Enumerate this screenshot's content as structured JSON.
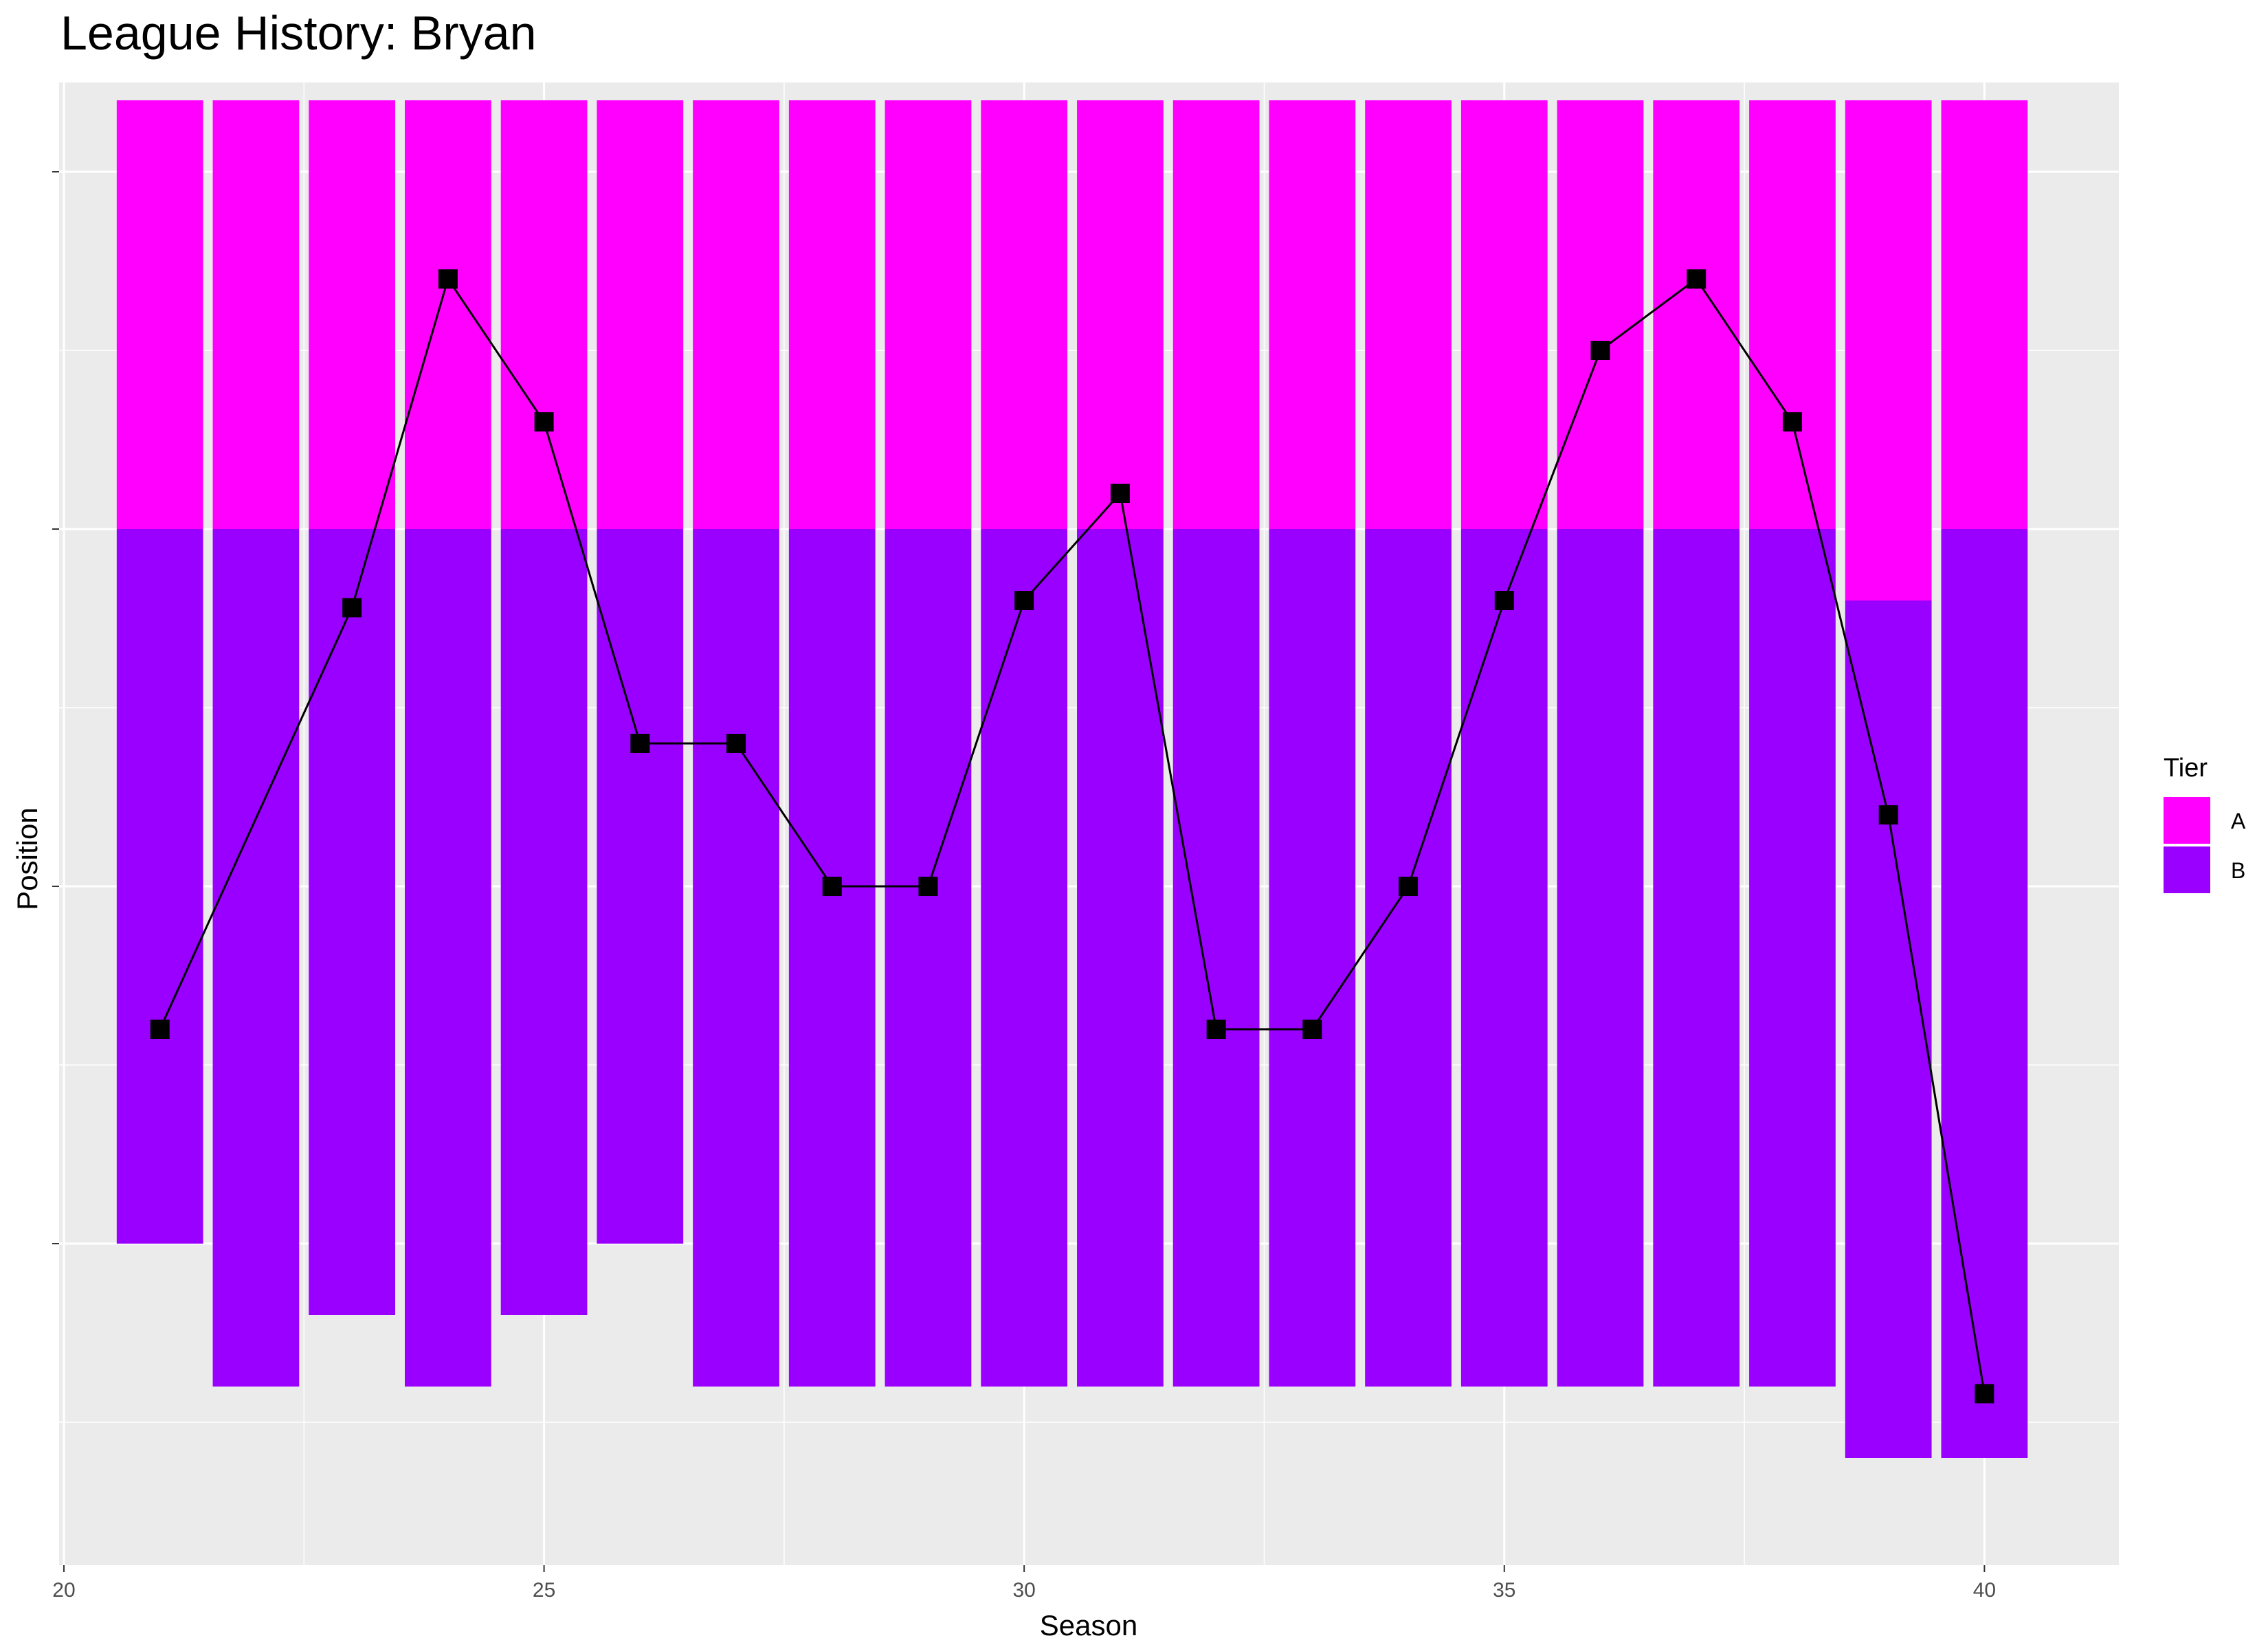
{
  "chart_data": {
    "type": "bar",
    "title": "League History: Bryan",
    "xlabel": "Season",
    "ylabel": "Position",
    "xlim": [
      19.95,
      41.4
    ],
    "ylim": [
      -19.5,
      1.25
    ],
    "x_ticks": [
      20,
      25,
      30,
      35,
      40
    ],
    "y_ticks": [
      0,
      -5,
      -10,
      -15
    ],
    "grid": true,
    "legend": {
      "title": "Tier",
      "placement": "right",
      "entries": [
        {
          "label": "A",
          "color": "#ff00ff"
        },
        {
          "label": "B",
          "color": "#9900ff"
        }
      ]
    },
    "series": [
      {
        "tier": "A",
        "color": "#ff00ff",
        "x": [
          21,
          22,
          23,
          24,
          25,
          26,
          27,
          28,
          29,
          30,
          31,
          32,
          33,
          34,
          35,
          36,
          37,
          38,
          39,
          40
        ],
        "y_top": [
          1,
          1,
          1,
          1,
          1,
          1,
          1,
          1,
          1,
          1,
          1,
          1,
          1,
          1,
          1,
          1,
          1,
          1,
          1,
          1
        ],
        "y_bottom": [
          -5,
          -5,
          -5,
          -5,
          -5,
          -5,
          -5,
          -5,
          -5,
          -5,
          -5,
          -5,
          -5,
          -5,
          -5,
          -5,
          -5,
          -5,
          -6,
          -5
        ]
      },
      {
        "tier": "B",
        "color": "#9900ff",
        "x": [
          21,
          22,
          23,
          24,
          25,
          26,
          27,
          28,
          29,
          30,
          31,
          32,
          33,
          34,
          35,
          36,
          37,
          38,
          39,
          40
        ],
        "y_top": [
          -5,
          -5,
          -5,
          -5,
          -5,
          -5,
          -5,
          -5,
          -5,
          -5,
          -5,
          -5,
          -5,
          -5,
          -5,
          -5,
          -5,
          -5,
          -6,
          -5
        ],
        "y_bottom": [
          -15,
          -17,
          -16,
          -17,
          -16,
          -15,
          -17,
          -17,
          -17,
          -17,
          -17,
          -17,
          -17,
          -17,
          -17,
          -17,
          -17,
          -17,
          -18,
          -18
        ]
      }
    ],
    "position_line": {
      "color": "#000000",
      "marker": "square",
      "x": [
        21,
        23,
        24,
        25,
        26,
        27,
        28,
        29,
        30,
        31,
        32,
        33,
        34,
        35,
        36,
        37,
        38,
        39,
        40
      ],
      "y": [
        -12,
        -6.1,
        -1.5,
        -3.5,
        -8,
        -8,
        -10,
        -10,
        -6,
        -4.5,
        -12,
        -12,
        -10,
        -6,
        -2.5,
        -1.5,
        -3.5,
        -9,
        -17.1
      ]
    }
  }
}
